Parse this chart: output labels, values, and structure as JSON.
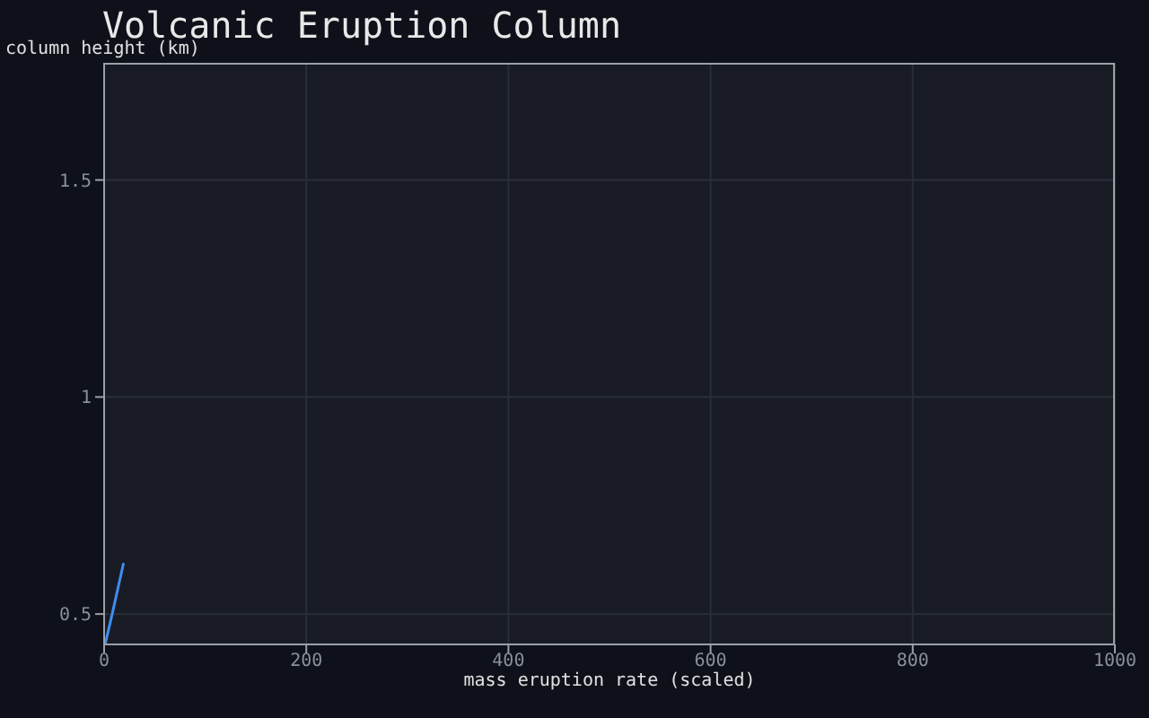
{
  "chart_data": {
    "type": "line",
    "title": "Volcanic Eruption Column",
    "xlabel": "mass eruption rate (scaled)",
    "ylabel": "column height (km)",
    "x": [
      1,
      8,
      19
    ],
    "values": [
      0.43,
      0.5,
      0.615
    ],
    "color": "#3d8ef0",
    "xlim": [
      0,
      1000
    ],
    "xticks": [
      0,
      200,
      400,
      600,
      800,
      1000
    ],
    "ylim": [
      0.43,
      1.77
    ],
    "yticks": [
      0.5,
      1,
      1.5
    ],
    "grid": true,
    "marker": "none"
  }
}
